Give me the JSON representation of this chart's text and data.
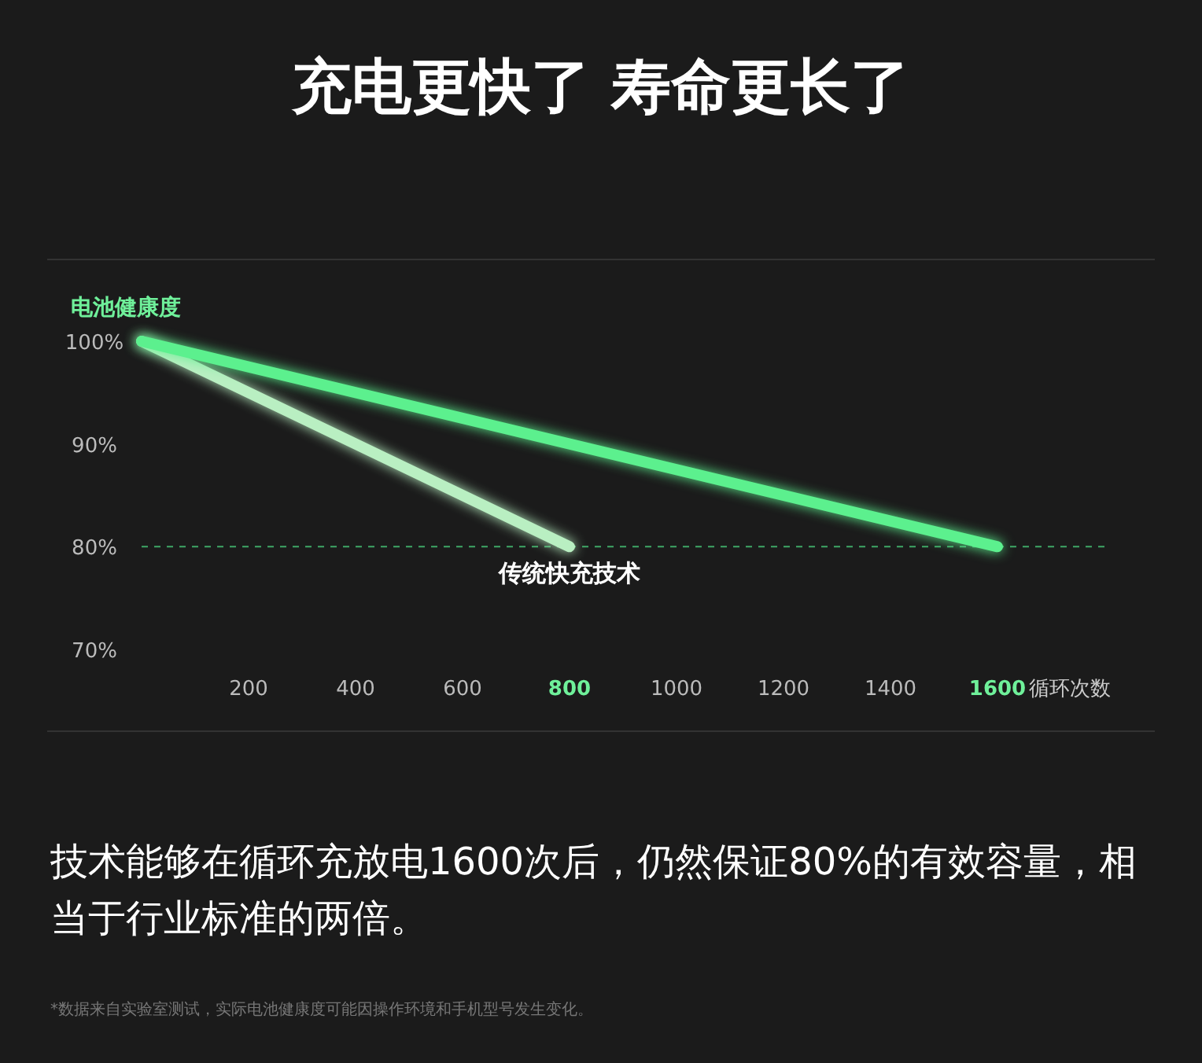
{
  "chart_data": {
    "type": "line",
    "title": "充电更快了 寿命更长了",
    "ylabel": "电池健康度",
    "xlabel": "循环次数",
    "xlim": [
      0,
      1800
    ],
    "xticks": [
      200,
      400,
      600,
      800,
      1000,
      1200,
      1400,
      1600
    ],
    "ylim": [
      70,
      100
    ],
    "yticks": [
      {
        "value": 70,
        "label": "70%"
      },
      {
        "value": 80,
        "label": "80%"
      },
      {
        "value": 90,
        "label": "90%"
      },
      {
        "value": 100,
        "label": "100%"
      }
    ],
    "series": [
      {
        "name": "传统快充技术",
        "color": "#b9efc2",
        "x": [
          0,
          800
        ],
        "values": [
          100,
          80
        ]
      },
      {
        "color": "#5cf08e",
        "x": [
          0,
          1600
        ],
        "values": [
          100,
          80
        ]
      }
    ],
    "ref_lines": [
      {
        "axis": "y",
        "value": 80,
        "color": "#3fa866",
        "line_style": "dashed"
      }
    ],
    "grid": false,
    "marker": "none",
    "line_style": "solid",
    "annotations": [
      "技术能够在循环充放电1600次后，仍然保证80%的有效容量，相当于行业标准的两倍。",
      "*数据来自实验室测试，实际电池健康度可能因操作环境和手机型号发生变化。"
    ]
  }
}
